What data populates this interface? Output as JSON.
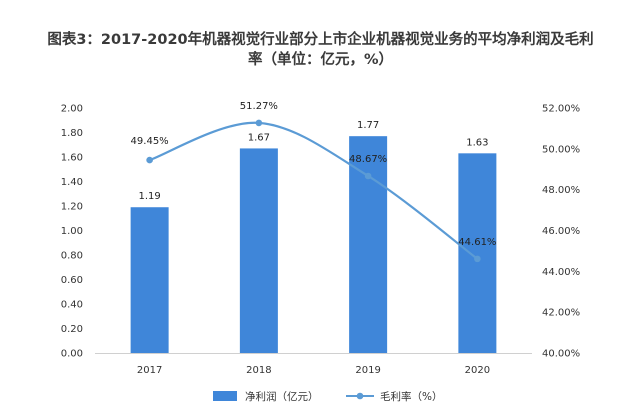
{
  "title_line1": "图表3：2017-2020年机器视觉行业部分上市企业机器视觉业务的平均净利润及毛利",
  "title_line2": "率（单位：亿元，%）",
  "chart_data": {
    "type": "bar",
    "categories": [
      "2017",
      "2018",
      "2019",
      "2020"
    ],
    "series": [
      {
        "name": "净利润（亿元）",
        "type": "bar",
        "axis": "left",
        "values": [
          1.19,
          1.67,
          1.77,
          1.63
        ],
        "labels": [
          "1.19",
          "1.67",
          "1.77",
          "1.63"
        ],
        "color": "#3f86d9"
      },
      {
        "name": "毛利率（%）",
        "type": "line",
        "axis": "right",
        "smooth": true,
        "values": [
          49.45,
          51.27,
          48.67,
          44.61
        ],
        "labels": [
          "49.45%",
          "51.27%",
          "48.67%",
          "44.61%"
        ],
        "color": "#5b9bd5"
      }
    ],
    "y_left": {
      "min": 0,
      "max": 2.0,
      "step": 0.2,
      "ticks": [
        "0.00",
        "0.20",
        "0.40",
        "0.60",
        "0.80",
        "1.00",
        "1.20",
        "1.40",
        "1.60",
        "1.80",
        "2.00"
      ]
    },
    "y_right": {
      "min": 40,
      "max": 52,
      "step": 2,
      "ticks": [
        "40.00%",
        "42.00%",
        "44.00%",
        "46.00%",
        "48.00%",
        "50.00%",
        "52.00%"
      ]
    },
    "grid": false,
    "legend": "bottom-center"
  }
}
